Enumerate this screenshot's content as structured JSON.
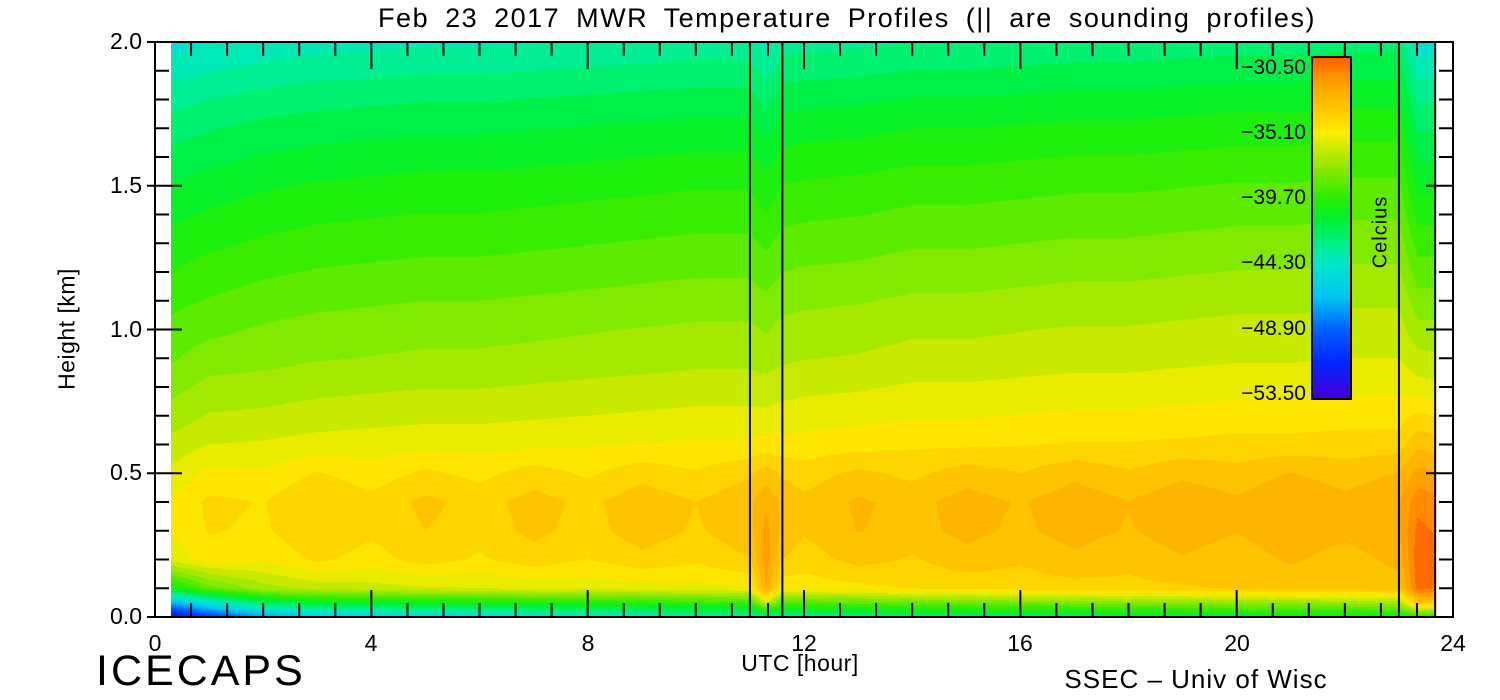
{
  "title": "Feb 23 2017 MWR Temperature Profiles (|| are sounding profiles)",
  "branding": {
    "left": "ICECAPS",
    "right": "SSEC – Univ of Wisc"
  },
  "axes": {
    "x": {
      "label": "UTC [hour]",
      "range": [
        0,
        24
      ],
      "ticks": [
        0,
        4,
        8,
        12,
        16,
        20,
        24
      ],
      "tick_labels": [
        "0",
        "4",
        "8",
        "12",
        "16",
        "20",
        "24"
      ],
      "minor_step_hours": 0.6667
    },
    "y": {
      "label": "Height [km]",
      "range": [
        0,
        2
      ],
      "ticks": [
        0,
        0.5,
        1.0,
        1.5,
        2.0
      ],
      "tick_labels": [
        "0.0",
        "0.5",
        "1.0",
        "1.5",
        "2.0"
      ],
      "minor_step_km": 0.1
    }
  },
  "colorbar": {
    "title": "Celcius",
    "tick_labels": [
      "−30.50",
      "−35.10",
      "−39.70",
      "−44.30",
      "−48.90",
      "−53.50"
    ],
    "tick_values": [
      -30.5,
      -35.1,
      -39.7,
      -44.3,
      -48.9,
      -53.5
    ],
    "top_value": -29.8,
    "bottom_value": -53.8
  },
  "chart_data": {
    "type": "heatmap",
    "title": "Feb 23 2017 MWR Temperature Profiles (|| are sounding profiles)",
    "xlabel": "UTC [hour]",
    "ylabel": "Height [km]",
    "units_label": "Celcius",
    "xlim": [
      0,
      24
    ],
    "ylim": [
      0,
      2
    ],
    "value_range_c": [
      -53.5,
      -30.5
    ],
    "band_step_c": 0.7667,
    "sounding_lines_utc": [
      11.0,
      11.6,
      23.0,
      23.67
    ],
    "x_hours": [
      0.3,
      1,
      2,
      3,
      4,
      5,
      6,
      7,
      8,
      9,
      10,
      11,
      11.3,
      11.6,
      12,
      13,
      14,
      15,
      16,
      17,
      18,
      19,
      20,
      21,
      22,
      23,
      23.35,
      23.67
    ],
    "y_heights_km": [
      0,
      0.05,
      0.1,
      0.2,
      0.3,
      0.4,
      0.5,
      0.6,
      0.7,
      0.8,
      0.9,
      1.0,
      1.1,
      1.2,
      1.3,
      1.4,
      1.5,
      1.6,
      1.7,
      1.8,
      1.9,
      2.0
    ],
    "temperature_c": [
      [
        -52.5,
        -47.0,
        -40.5,
        -35.6,
        -35.1,
        -35.0,
        -35.7,
        -36.4,
        -37.1,
        -37.7,
        -38.3,
        -38.7,
        -39.2,
        -39.7,
        -40.2,
        -40.7,
        -41.2,
        -41.8,
        -42.4,
        -43.1,
        -43.9,
        -44.7
      ],
      [
        -50.5,
        -44.5,
        -38.5,
        -34.8,
        -34.3,
        -34.2,
        -34.9,
        -35.9,
        -36.6,
        -37.2,
        -37.8,
        -38.4,
        -38.9,
        -39.4,
        -39.9,
        -40.4,
        -40.9,
        -41.5,
        -42.1,
        -42.8,
        -43.6,
        -44.4
      ],
      [
        -47.5,
        -42.0,
        -37.0,
        -35.0,
        -34.5,
        -34.4,
        -35.0,
        -35.8,
        -36.5,
        -37.1,
        -37.7,
        -38.1,
        -38.6,
        -39.1,
        -39.6,
        -40.1,
        -40.6,
        -41.2,
        -41.8,
        -42.5,
        -43.3,
        -44.1
      ],
      [
        -46.3,
        -41.0,
        -36.4,
        -34.2,
        -33.7,
        -33.6,
        -34.3,
        -35.6,
        -36.3,
        -36.9,
        -37.5,
        -37.9,
        -38.4,
        -38.9,
        -39.4,
        -39.9,
        -40.4,
        -41.0,
        -41.6,
        -42.3,
        -43.1,
        -43.9
      ],
      [
        -46.0,
        -40.8,
        -36.2,
        -34.7,
        -34.2,
        -34.1,
        -34.8,
        -35.5,
        -36.2,
        -36.8,
        -37.4,
        -37.8,
        -38.3,
        -38.8,
        -39.3,
        -39.8,
        -40.3,
        -40.9,
        -41.5,
        -42.2,
        -43.0,
        -43.8
      ],
      [
        -45.6,
        -40.5,
        -36.0,
        -34.0,
        -33.6,
        -33.4,
        -34.2,
        -35.4,
        -36.1,
        -36.7,
        -37.3,
        -37.7,
        -38.2,
        -38.7,
        -39.2,
        -39.7,
        -40.2,
        -40.8,
        -41.4,
        -42.1,
        -42.9,
        -43.7
      ],
      [
        -45.3,
        -40.3,
        -35.9,
        -34.5,
        -34.0,
        -33.9,
        -34.6,
        -35.4,
        -36.1,
        -36.7,
        -37.3,
        -37.7,
        -38.2,
        -38.7,
        -39.2,
        -39.7,
        -40.2,
        -40.8,
        -41.4,
        -42.1,
        -42.9,
        -43.7
      ],
      [
        -45.0,
        -40.0,
        -35.7,
        -33.9,
        -33.4,
        -33.3,
        -34.0,
        -35.3,
        -36.0,
        -36.6,
        -37.2,
        -37.6,
        -38.1,
        -38.6,
        -39.1,
        -39.6,
        -40.1,
        -40.7,
        -41.3,
        -42.0,
        -42.8,
        -43.6
      ],
      [
        -44.8,
        -39.9,
        -35.6,
        -34.4,
        -33.9,
        -33.8,
        -34.5,
        -35.2,
        -35.9,
        -36.5,
        -37.1,
        -37.5,
        -38.0,
        -38.5,
        -39.0,
        -39.5,
        -40.0,
        -40.6,
        -41.2,
        -41.9,
        -42.7,
        -43.5
      ],
      [
        -44.4,
        -39.7,
        -35.5,
        -33.8,
        -33.2,
        -33.1,
        -33.9,
        -35.1,
        -35.8,
        -36.4,
        -37.0,
        -37.4,
        -37.9,
        -38.4,
        -38.9,
        -39.4,
        -39.9,
        -40.5,
        -41.1,
        -41.8,
        -42.6,
        -43.4
      ],
      [
        -43.5,
        -39.5,
        -35.4,
        -34.2,
        -33.7,
        -33.6,
        -34.3,
        -35.0,
        -35.7,
        -36.3,
        -36.9,
        -37.3,
        -37.8,
        -38.3,
        -38.8,
        -39.3,
        -39.8,
        -40.4,
        -41.0,
        -41.7,
        -42.5,
        -43.3
      ],
      [
        -43.4,
        -39.3,
        -35.2,
        -33.6,
        -33.1,
        -33.0,
        -33.7,
        -35.0,
        -35.7,
        -36.3,
        -36.9,
        -37.3,
        -37.8,
        -38.3,
        -38.8,
        -39.3,
        -39.8,
        -40.4,
        -41.0,
        -41.7,
        -42.5,
        -43.3
      ],
      [
        -43.0,
        -36.0,
        -32.0,
        -31.6,
        -31.8,
        -32.2,
        -33.2,
        -34.8,
        -35.7,
        -36.4,
        -37.0,
        -37.5,
        -38.0,
        -38.6,
        -39.1,
        -39.7,
        -40.2,
        -40.8,
        -41.5,
        -42.3,
        -43.1,
        -44.0
      ],
      [
        -43.2,
        -39.0,
        -34.9,
        -33.6,
        -33.0,
        -33.0,
        -33.7,
        -34.9,
        -35.6,
        -36.2,
        -36.8,
        -37.2,
        -37.7,
        -38.2,
        -38.7,
        -39.2,
        -39.7,
        -40.3,
        -40.9,
        -41.6,
        -42.4,
        -43.2
      ],
      [
        -43.0,
        -38.9,
        -34.8,
        -34.0,
        -33.5,
        -33.4,
        -34.0,
        -34.8,
        -35.5,
        -36.1,
        -36.7,
        -37.1,
        -37.6,
        -38.1,
        -38.6,
        -39.1,
        -39.6,
        -40.2,
        -40.8,
        -41.5,
        -42.3,
        -43.1
      ],
      [
        -42.7,
        -38.6,
        -34.6,
        -33.3,
        -32.8,
        -32.7,
        -33.4,
        -34.7,
        -35.4,
        -36.0,
        -36.6,
        -37.0,
        -37.5,
        -38.0,
        -38.5,
        -39.0,
        -39.5,
        -40.1,
        -40.7,
        -41.4,
        -42.2,
        -43.0
      ],
      [
        -42.4,
        -38.3,
        -34.3,
        -33.7,
        -33.1,
        -33.1,
        -33.8,
        -34.5,
        -35.2,
        -35.8,
        -36.4,
        -36.8,
        -37.3,
        -37.8,
        -38.3,
        -38.8,
        -39.3,
        -39.9,
        -40.5,
        -41.2,
        -42.0,
        -42.8
      ],
      [
        -42.2,
        -38.2,
        -34.2,
        -33.1,
        -32.6,
        -32.5,
        -33.2,
        -34.5,
        -35.2,
        -35.8,
        -36.4,
        -36.8,
        -37.3,
        -37.8,
        -38.3,
        -38.8,
        -39.3,
        -39.9,
        -40.5,
        -41.2,
        -42.0,
        -42.8
      ],
      [
        -42.0,
        -38.0,
        -34.0,
        -33.5,
        -33.0,
        -32.9,
        -33.6,
        -34.4,
        -35.1,
        -35.7,
        -36.3,
        -36.7,
        -37.2,
        -37.7,
        -38.2,
        -38.7,
        -39.2,
        -39.8,
        -40.4,
        -41.1,
        -41.9,
        -42.7
      ],
      [
        -41.8,
        -37.9,
        -33.9,
        -33.0,
        -32.5,
        -32.4,
        -33.0,
        -34.3,
        -35.0,
        -35.6,
        -36.2,
        -36.6,
        -37.1,
        -37.6,
        -38.1,
        -38.6,
        -39.1,
        -39.7,
        -40.3,
        -41.0,
        -41.8,
        -42.6
      ],
      [
        -41.6,
        -37.7,
        -33.8,
        -33.4,
        -32.9,
        -32.8,
        -33.5,
        -34.3,
        -35.0,
        -35.6,
        -36.2,
        -36.6,
        -37.1,
        -37.6,
        -38.1,
        -38.6,
        -39.1,
        -39.7,
        -40.3,
        -41.0,
        -41.8,
        -42.6
      ],
      [
        -41.5,
        -37.6,
        -33.7,
        -32.9,
        -32.4,
        -32.3,
        -33.0,
        -34.2,
        -34.9,
        -35.5,
        -36.1,
        -36.5,
        -37.0,
        -37.5,
        -38.0,
        -38.5,
        -39.0,
        -39.6,
        -40.2,
        -40.9,
        -41.7,
        -42.5
      ],
      [
        -41.2,
        -37.4,
        -33.5,
        -33.3,
        -32.8,
        -32.7,
        -33.3,
        -34.1,
        -34.8,
        -35.4,
        -36.0,
        -36.4,
        -36.9,
        -37.4,
        -37.9,
        -38.4,
        -38.9,
        -39.5,
        -40.1,
        -40.8,
        -41.6,
        -42.4
      ],
      [
        -41.1,
        -37.3,
        -33.4,
        -32.7,
        -32.2,
        -32.1,
        -32.8,
        -34.1,
        -34.8,
        -35.4,
        -36.0,
        -36.4,
        -36.9,
        -37.4,
        -37.9,
        -38.4,
        -38.9,
        -39.5,
        -40.1,
        -40.8,
        -41.6,
        -42.4
      ],
      [
        -41.0,
        -37.2,
        -33.3,
        -33.2,
        -32.6,
        -32.6,
        -33.2,
        -34.0,
        -34.7,
        -35.3,
        -35.9,
        -36.3,
        -36.8,
        -37.3,
        -37.8,
        -38.3,
        -38.8,
        -39.4,
        -40.0,
        -40.7,
        -41.5,
        -42.3
      ],
      [
        -40.8,
        -37.0,
        -33.2,
        -32.6,
        -32.1,
        -32.1,
        -32.8,
        -34.0,
        -34.7,
        -35.3,
        -35.9,
        -36.3,
        -36.8,
        -37.3,
        -37.8,
        -38.3,
        -38.8,
        -39.4,
        -40.0,
        -40.7,
        -41.5,
        -42.3
      ],
      [
        -40.0,
        -33.0,
        -30.2,
        -30.0,
        -30.3,
        -30.8,
        -31.8,
        -33.0,
        -34.2,
        -35.6,
        -36.4,
        -37.2,
        -37.9,
        -38.6,
        -39.3,
        -40.0,
        -40.7,
        -41.4,
        -42.1,
        -42.9,
        -43.8,
        -44.8
      ],
      [
        -40.2,
        -33.5,
        -30.6,
        -30.3,
        -30.6,
        -31.0,
        -32.0,
        -33.2,
        -34.4,
        -35.7,
        -36.5,
        -37.2,
        -37.9,
        -38.6,
        -39.3,
        -40.0,
        -40.7,
        -41.4,
        -42.1,
        -42.9,
        -43.8,
        -44.7
      ]
    ],
    "color_scale": [
      [
        -54.6,
        50,
        0,
        200
      ],
      [
        -53.5,
        64,
        0,
        224
      ],
      [
        -51.2,
        0,
        40,
        255
      ],
      [
        -48.9,
        0,
        100,
        255
      ],
      [
        -46.6,
        0,
        200,
        240
      ],
      [
        -44.3,
        0,
        232,
        200
      ],
      [
        -42.8,
        0,
        240,
        130
      ],
      [
        -41.2,
        0,
        240,
        50
      ],
      [
        -39.7,
        40,
        238,
        0
      ],
      [
        -37.4,
        150,
        232,
        0
      ],
      [
        -35.8,
        220,
        235,
        0
      ],
      [
        -35.1,
        255,
        238,
        0
      ],
      [
        -33.4,
        255,
        200,
        0
      ],
      [
        -32.0,
        255,
        170,
        0
      ],
      [
        -30.9,
        255,
        140,
        0
      ],
      [
        -30.5,
        255,
        120,
        0
      ],
      [
        -29.6,
        255,
        90,
        0
      ]
    ]
  }
}
